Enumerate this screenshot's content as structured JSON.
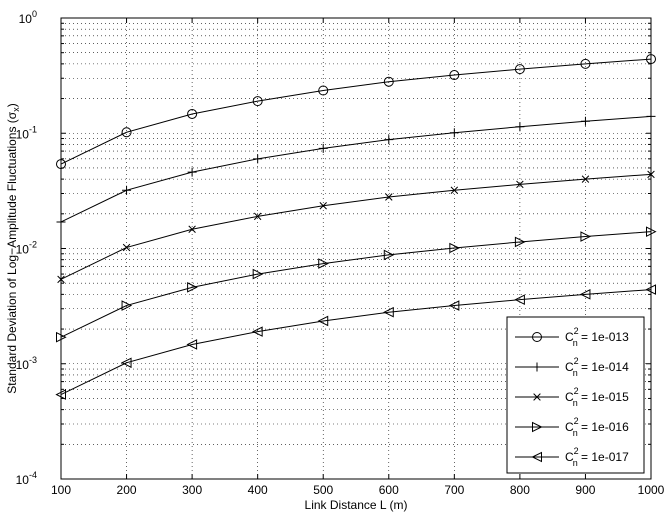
{
  "chart_data": {
    "type": "line",
    "title": "",
    "xlabel": "Link Distance L (m)",
    "ylabel_main": "Standard Deviation of Log−Amplitude Fluctuations (σ",
    "ylabel_sub": "x",
    "ylabel_close": ")",
    "yscale": "log",
    "xlim": [
      100,
      1000
    ],
    "ylim": [
      0.0001,
      1
    ],
    "grid": true,
    "legend_position": "bottom-right",
    "x": [
      100,
      200,
      300,
      400,
      500,
      600,
      700,
      800,
      900,
      1000
    ],
    "xticks": [
      "100",
      "200",
      "300",
      "400",
      "500",
      "600",
      "700",
      "800",
      "900",
      "1000"
    ],
    "yticks": [
      {
        "base": "10",
        "exp": "-4"
      },
      {
        "base": "10",
        "exp": "-3"
      },
      {
        "base": "10",
        "exp": "-2"
      },
      {
        "base": "10",
        "exp": "-1"
      },
      {
        "base": "10",
        "exp": "0"
      }
    ],
    "series": [
      {
        "marker": "circle",
        "legend_main": "C",
        "legend_sub": "n",
        "legend_sup": "2",
        "legend_value": " = 1e-013",
        "values": [
          0.054,
          0.102,
          0.147,
          0.19,
          0.235,
          0.28,
          0.32,
          0.36,
          0.4,
          0.44
        ]
      },
      {
        "marker": "plus",
        "legend_main": "C",
        "legend_sub": "n",
        "legend_sup": "2",
        "legend_value": " = 1e-014",
        "values": [
          0.017,
          0.032,
          0.046,
          0.06,
          0.074,
          0.088,
          0.101,
          0.114,
          0.127,
          0.14
        ]
      },
      {
        "marker": "x",
        "legend_main": "C",
        "legend_sub": "n",
        "legend_sup": "2",
        "legend_value": " = 1e-015",
        "values": [
          0.0054,
          0.0102,
          0.0147,
          0.019,
          0.0235,
          0.028,
          0.032,
          0.036,
          0.04,
          0.044
        ]
      },
      {
        "marker": "triangle-right",
        "legend_main": "C",
        "legend_sub": "n",
        "legend_sup": "2",
        "legend_value": " = 1e-016",
        "values": [
          0.0017,
          0.0032,
          0.0046,
          0.006,
          0.0074,
          0.0088,
          0.0101,
          0.0114,
          0.0127,
          0.014
        ]
      },
      {
        "marker": "triangle-left",
        "legend_main": "C",
        "legend_sub": "n",
        "legend_sup": "2",
        "legend_value": " = 1e-017",
        "values": [
          0.00054,
          0.00102,
          0.00147,
          0.0019,
          0.00235,
          0.0028,
          0.0032,
          0.0036,
          0.004,
          0.0044
        ]
      }
    ]
  }
}
